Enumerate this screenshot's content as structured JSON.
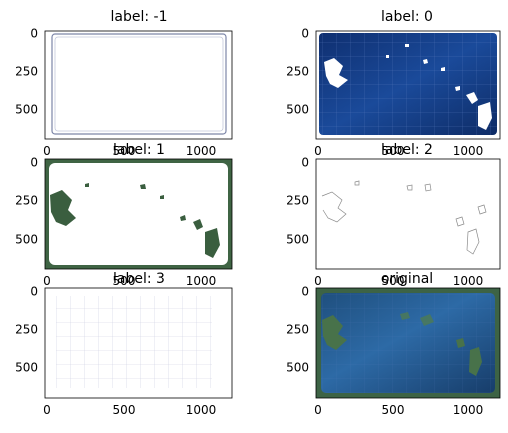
{
  "figure": {
    "panels": [
      {
        "title": "label: -1",
        "xticks": [
          "0",
          "500",
          "1000"
        ],
        "yticks": [
          "0",
          "250",
          "500"
        ]
      },
      {
        "title": "label: 0",
        "xticks": [
          "0",
          "500",
          "1000"
        ],
        "yticks": [
          "0",
          "250",
          "500"
        ]
      },
      {
        "title": "label: 1",
        "xticks": [
          "0",
          "500",
          "1000"
        ],
        "yticks": [
          "0",
          "250",
          "500"
        ]
      },
      {
        "title": "label: 2",
        "xticks": [
          "0",
          "500",
          "1000"
        ],
        "yticks": [
          "0",
          "250",
          "500"
        ]
      },
      {
        "title": "label: 3",
        "xticks": [
          "0",
          "500",
          "1000"
        ],
        "yticks": [
          "0",
          "250",
          "500"
        ]
      },
      {
        "title": "original",
        "xticks": [
          "0",
          "500",
          "1000"
        ],
        "yticks": [
          "0",
          "250",
          "500"
        ]
      }
    ]
  },
  "colors": {
    "ocean_dark": "#0b2a63",
    "ocean_mid": "#123a86",
    "land_green": "#3a5a3c",
    "border_green": "#4a6f4a",
    "outline_gray": "#7a7f9a",
    "grid_gray": "#d7d9e6"
  }
}
